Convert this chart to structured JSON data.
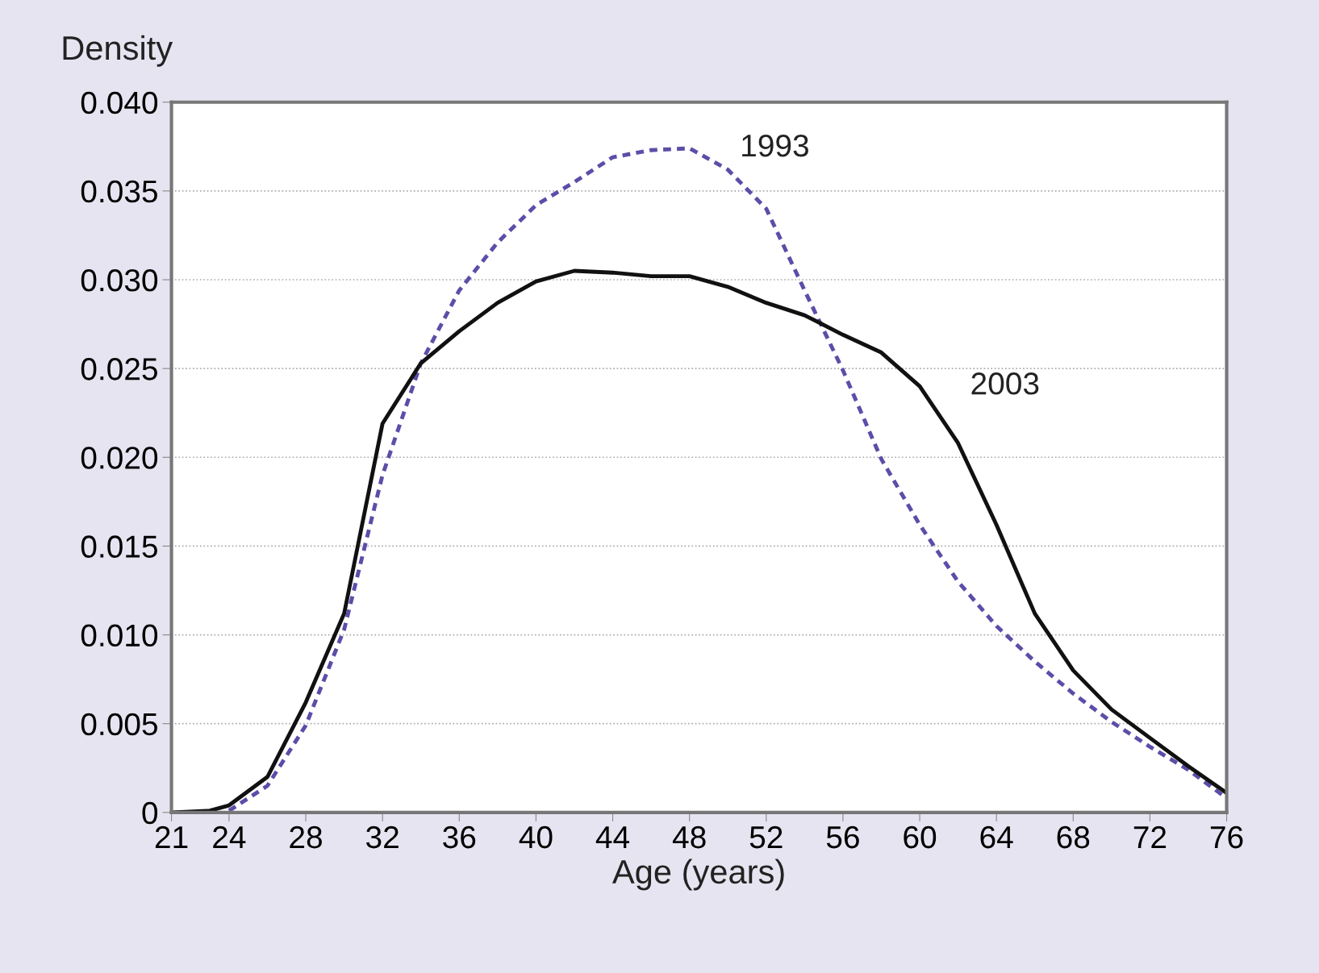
{
  "chart_data": {
    "type": "line",
    "ylabel": "Density",
    "xlabel": "Age (years)",
    "x": [
      21,
      23,
      24,
      26,
      28,
      30,
      32,
      34,
      36,
      38,
      40,
      42,
      44,
      46,
      48,
      50,
      52,
      54,
      56,
      58,
      60,
      62,
      64,
      66,
      68,
      70,
      72,
      74,
      76
    ],
    "series": [
      {
        "name": "1993",
        "color": "#5b4ea8",
        "line_style": "dotted",
        "values": [
          null,
          null,
          0.0001,
          0.0015,
          0.0049,
          0.0103,
          0.019,
          0.0253,
          0.0294,
          0.0321,
          0.0342,
          0.0355,
          0.0369,
          0.0373,
          0.0374,
          0.0362,
          0.034,
          0.0294,
          0.0249,
          0.0199,
          0.0162,
          0.013,
          0.0105,
          0.0085,
          0.0067,
          0.0051,
          0.0037,
          0.0024,
          0.0008
        ]
      },
      {
        "name": "2003",
        "color": "#111111",
        "line_style": "solid",
        "values": [
          0,
          0.0001,
          0.0004,
          0.002,
          0.0062,
          0.0112,
          0.0219,
          0.0253,
          0.0271,
          0.0287,
          0.0299,
          0.0305,
          0.0304,
          0.0302,
          0.0302,
          0.0296,
          0.0287,
          0.028,
          0.0269,
          0.0259,
          0.024,
          0.0208,
          0.0162,
          0.0112,
          0.008,
          0.0058,
          0.0042,
          0.0026,
          0.0011
        ]
      }
    ],
    "xlim": [
      21,
      76
    ],
    "xticks": [
      21,
      24,
      28,
      32,
      36,
      40,
      44,
      48,
      52,
      56,
      60,
      64,
      68,
      72,
      76
    ],
    "ylim": [
      0,
      0.04
    ],
    "yticks": [
      {
        "value": 0,
        "label": "0"
      },
      {
        "value": 0.005,
        "label": "0.005"
      },
      {
        "value": 0.01,
        "label": "0.010"
      },
      {
        "value": 0.015,
        "label": "0.015"
      },
      {
        "value": 0.02,
        "label": "0.020"
      },
      {
        "value": 0.025,
        "label": "0.025"
      },
      {
        "value": 0.03,
        "label": "0.030"
      },
      {
        "value": 0.035,
        "label": "0.035"
      },
      {
        "value": 0.04,
        "label": "0.040"
      }
    ],
    "grid": "y",
    "legend": false,
    "marker": "none"
  }
}
